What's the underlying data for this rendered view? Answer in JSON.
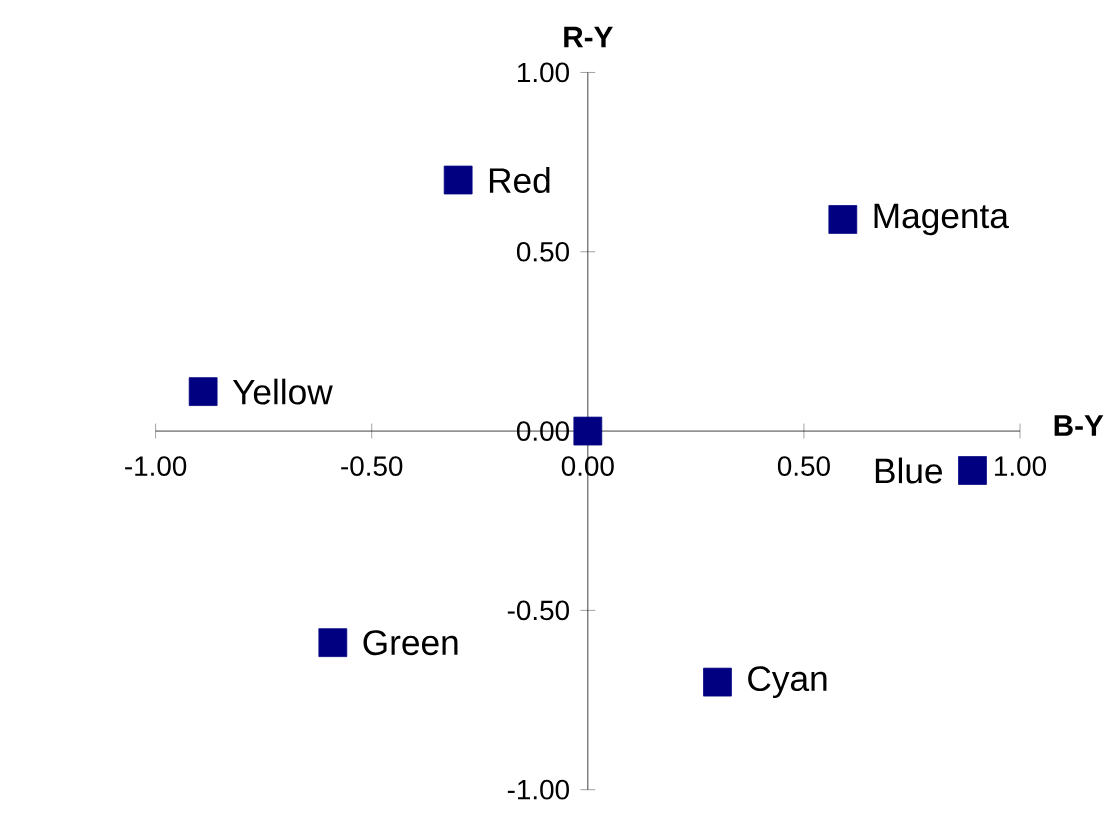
{
  "chart_data": {
    "type": "scatter",
    "xlabel": "B-Y",
    "ylabel": "R-Y",
    "x": [
      -0.3,
      0.59,
      -0.89,
      0,
      0.89,
      -0.59,
      0.3
    ],
    "values": [
      0.7,
      0.59,
      0.11,
      0,
      -0.11,
      -0.59,
      -0.7
    ],
    "color": "#000080",
    "marker": "square",
    "xlim": [
      -1,
      1
    ],
    "ylim": [
      -1,
      1
    ],
    "xticks": [
      {
        "value": -1,
        "label": "-1.00"
      },
      {
        "value": -0.5,
        "label": "-0.50"
      },
      {
        "value": 0,
        "label": "0.00"
      },
      {
        "value": 0.5,
        "label": "0.50"
      },
      {
        "value": 1,
        "label": "1.00"
      }
    ],
    "yticks": [
      {
        "value": -1,
        "label": "-1.00"
      },
      {
        "value": -0.5,
        "label": "-0.50"
      },
      {
        "value": 0,
        "label": "0.00"
      },
      {
        "value": 0.5,
        "label": "0.50"
      },
      {
        "value": 1,
        "label": "1.00"
      }
    ],
    "annotations": [
      {
        "text": "Red",
        "x": -0.3,
        "y": 0.7
      },
      {
        "text": "Magenta",
        "x": 0.59,
        "y": 0.59
      },
      {
        "text": "Yellow",
        "x": -0.89,
        "y": 0.11
      },
      {
        "text": "Blue",
        "x": 0.89,
        "y": -0.11
      },
      {
        "text": "Green",
        "x": -0.59,
        "y": -0.59
      },
      {
        "text": "Cyan",
        "x": 0.3,
        "y": -0.7
      }
    ]
  }
}
